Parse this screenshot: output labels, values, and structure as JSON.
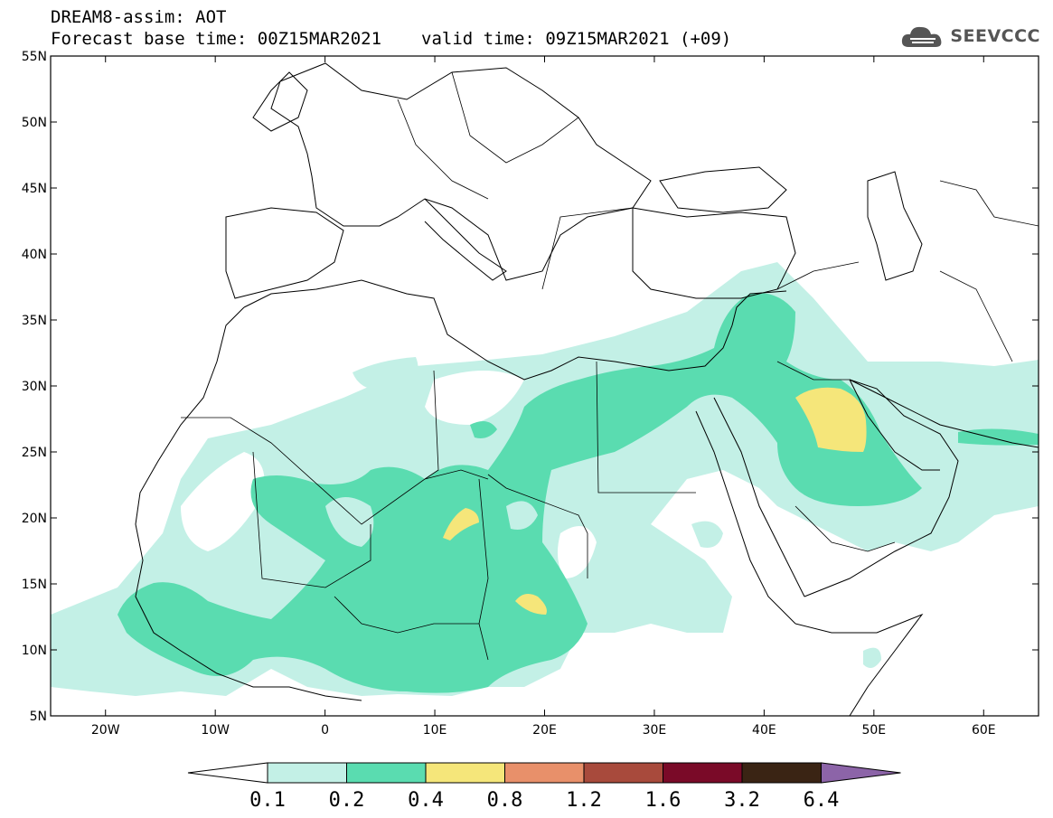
{
  "header": {
    "title": "DREAM8-assim: AOT",
    "base_time": "Forecast base time: 00Z15MAR2021",
    "valid_time": "valid time: 09Z15MAR2021 (+09)"
  },
  "logo": {
    "text": "SEEVCCC",
    "icon": "cloud-icon"
  },
  "map": {
    "lon_range": [
      -25,
      65
    ],
    "lat_range": [
      5,
      55
    ],
    "lat_ticks": [
      "55N",
      "50N",
      "45N",
      "40N",
      "35N",
      "30N",
      "25N",
      "20N",
      "15N",
      "10N",
      "5N"
    ],
    "lon_ticks": [
      "20W",
      "10W",
      "0",
      "10E",
      "20E",
      "30E",
      "40E",
      "50E",
      "60E"
    ],
    "region": "North Africa, Europe and Middle East"
  },
  "colorbar": {
    "levels": [
      "0.1",
      "0.2",
      "0.4",
      "0.8",
      "1.2",
      "1.6",
      "3.2",
      "6.4"
    ],
    "colors": [
      "#ffffff",
      "#c3f0e6",
      "#5adcb0",
      "#f5e67a",
      "#e8906a",
      "#a84a3c",
      "#7a0a28",
      "#3a2414",
      "#8c64a8"
    ]
  }
}
